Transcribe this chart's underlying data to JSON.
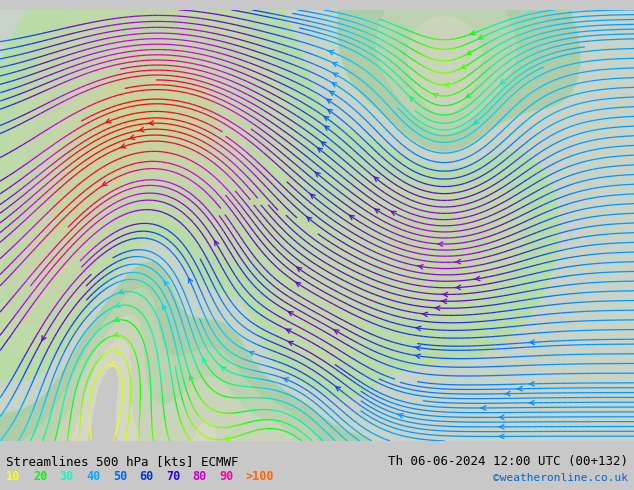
{
  "title_left": "Streamlines 500 hPa [kts] ECMWF",
  "title_right": "Th 06-06-2024 12:00 UTC (00+132)",
  "credit": "©weatheronline.co.uk",
  "legend_values": [
    "10",
    "20",
    "30",
    "40",
    "50",
    "60",
    "70",
    "80",
    "90",
    ">100"
  ],
  "legend_colors": [
    "#ffff00",
    "#c8ff00",
    "#00ff00",
    "#00ffaa",
    "#00ccff",
    "#0088ff",
    "#0044ff",
    "#aa00ff",
    "#ff00ff",
    "#ff0000"
  ],
  "bg_color": "#d0d0d0",
  "land_color": "#c8c8c8",
  "high_wind_color": "#c8ff96",
  "fig_width": 6.34,
  "fig_height": 4.9,
  "dpi": 100
}
